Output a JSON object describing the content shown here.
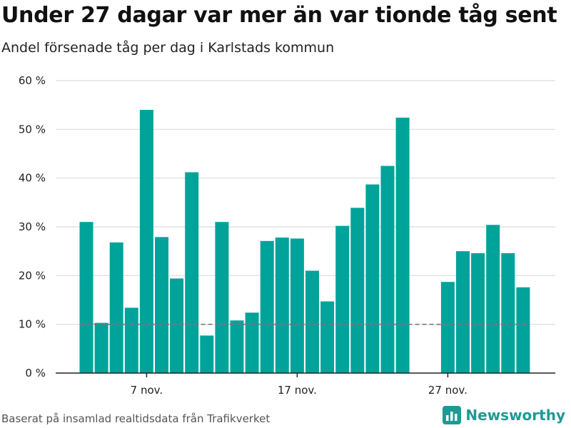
{
  "header": {
    "title": "Under 27 dagar var mer än var tionde tåg sent",
    "subtitle": "Andel försenade tåg per dag i Karlstads kommun"
  },
  "footer": {
    "source": "Baserat på insamlad realtidsdata från Trafikverket",
    "brand_name": "Newsworthy"
  },
  "colors": {
    "bar": "#00a39a",
    "grid": "#dcdcdc",
    "axis": "#222222",
    "reference_line": "#777777",
    "brand": "#1e9a94"
  },
  "icons": {
    "brand_logo": "bar-chart-icon"
  },
  "chart_data": {
    "type": "bar",
    "title": "Under 27 dagar var mer än var tionde tåg sent",
    "subtitle": "Andel försenade tåg per dag i Karlstads kommun",
    "xlabel": "",
    "ylabel": "",
    "unit": "%",
    "ylim": [
      0,
      60
    ],
    "y_ticks": [
      0,
      10,
      20,
      30,
      40,
      50,
      60
    ],
    "y_tick_labels": [
      "0 %",
      "10 %",
      "20 %",
      "30 %",
      "40 %",
      "50 %",
      "60 %"
    ],
    "x_tick_labels": [
      {
        "label": "7 nov.",
        "date": "2019-11-07"
      },
      {
        "label": "17 nov.",
        "date": "2019-11-17"
      },
      {
        "label": "27 nov.",
        "date": "2019-11-27"
      }
    ],
    "reference_line": 10,
    "grid": true,
    "series": [
      {
        "values": [
          {
            "date": "2019-11-03",
            "value": 31
          },
          {
            "date": "2019-11-04",
            "value": 10.3
          },
          {
            "date": "2019-11-05",
            "value": 26.8
          },
          {
            "date": "2019-11-06",
            "value": 13.4
          },
          {
            "date": "2019-11-07",
            "value": 54
          },
          {
            "date": "2019-11-08",
            "value": 27.9
          },
          {
            "date": "2019-11-09",
            "value": 19.4
          },
          {
            "date": "2019-11-10",
            "value": 41.2
          },
          {
            "date": "2019-11-11",
            "value": 7.7
          },
          {
            "date": "2019-11-12",
            "value": 31
          },
          {
            "date": "2019-11-13",
            "value": 10.8
          },
          {
            "date": "2019-11-14",
            "value": 12.4
          },
          {
            "date": "2019-11-15",
            "value": 27.1
          },
          {
            "date": "2019-11-16",
            "value": 27.8
          },
          {
            "date": "2019-11-17",
            "value": 27.6
          },
          {
            "date": "2019-11-18",
            "value": 21
          },
          {
            "date": "2019-11-19",
            "value": 14.7
          },
          {
            "date": "2019-11-20",
            "value": 30.2
          },
          {
            "date": "2019-11-21",
            "value": 33.9
          },
          {
            "date": "2019-11-22",
            "value": 38.7
          },
          {
            "date": "2019-11-23",
            "value": 42.5
          },
          {
            "date": "2019-11-24",
            "value": 52.4
          },
          {
            "date": "2019-11-27",
            "value": 18.7
          },
          {
            "date": "2019-11-28",
            "value": 25
          },
          {
            "date": "2019-11-29",
            "value": 24.6
          },
          {
            "date": "2019-11-30",
            "value": 30.4
          },
          {
            "date": "2019-12-01",
            "value": 24.6
          },
          {
            "date": "2019-12-02",
            "value": 17.6
          }
        ]
      }
    ]
  }
}
